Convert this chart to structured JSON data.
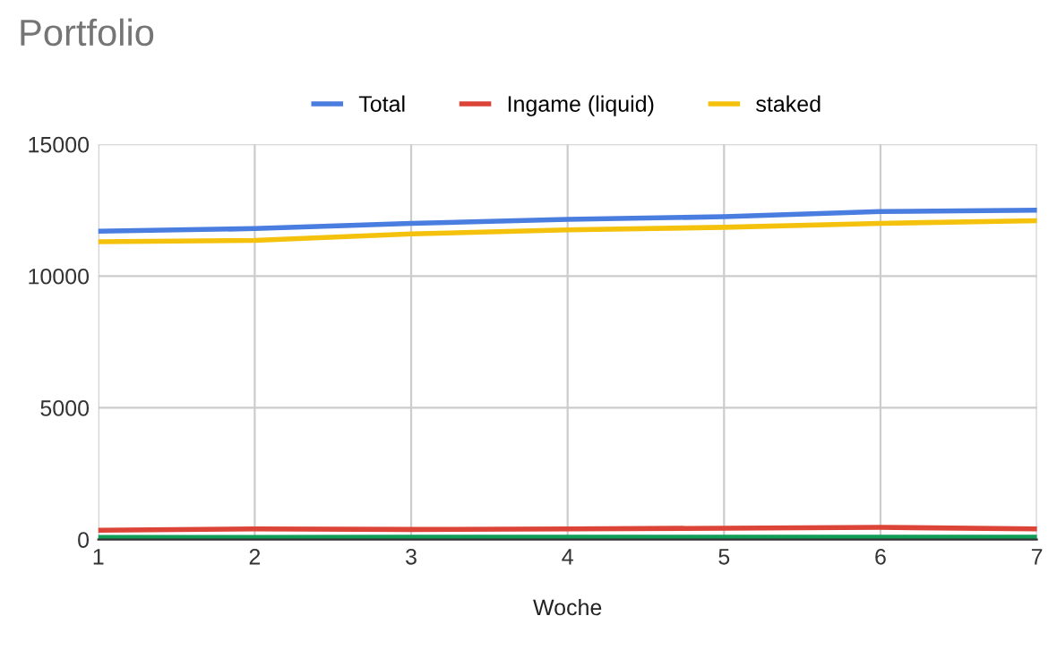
{
  "chart_data": {
    "type": "line",
    "title": "Portfolio",
    "xlabel": "Woche",
    "x": [
      1,
      2,
      3,
      4,
      5,
      6,
      7
    ],
    "series": [
      {
        "name": "Total",
        "color": "#4a7de0",
        "values": [
          11700,
          11800,
          12000,
          12150,
          12250,
          12450,
          12500
        ]
      },
      {
        "name": "Ingame (liquid)",
        "color": "#db4437",
        "values": [
          350,
          400,
          380,
          400,
          430,
          460,
          400
        ]
      },
      {
        "name": "staked",
        "color": "#f4c20d",
        "values": [
          11300,
          11350,
          11600,
          11750,
          11850,
          12000,
          12100
        ]
      },
      {
        "color": "#0f9d58",
        "values": [
          80,
          80,
          90,
          90,
          90,
          90,
          90
        ]
      }
    ],
    "xlim": [
      1,
      7
    ],
    "xticks": [
      1,
      2,
      3,
      4,
      5,
      6,
      7
    ],
    "ylim": [
      0,
      15000
    ],
    "yticks": [
      0,
      5000,
      10000,
      15000
    ],
    "grid": true,
    "legend": "top",
    "marker": "none",
    "line_style": "solid"
  }
}
